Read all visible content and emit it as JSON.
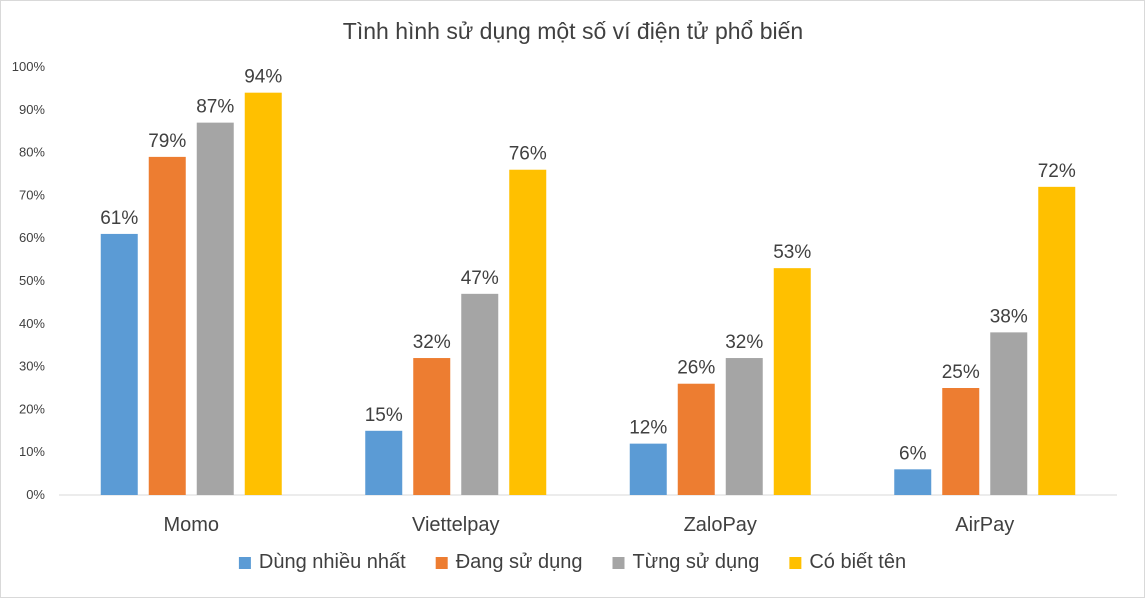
{
  "chart_data": {
    "type": "bar",
    "title": "Tình hình sử dụng một số ví điện tử phổ biến",
    "xlabel": "",
    "ylabel": "",
    "ylim": [
      0,
      100
    ],
    "y_ticks": [
      "0%",
      "10%",
      "20%",
      "30%",
      "40%",
      "50%",
      "60%",
      "70%",
      "80%",
      "90%",
      "100%"
    ],
    "grid": false,
    "legend_position": "bottom",
    "data_label_suffix": "%",
    "categories": [
      "Momo",
      "Viettelpay",
      "ZaloPay",
      "AirPay"
    ],
    "series": [
      {
        "name": "Dùng nhiều nhất",
        "color": "#5b9bd5",
        "values": [
          61,
          15,
          12,
          6
        ]
      },
      {
        "name": "Đang sử dụng",
        "color": "#ed7d31",
        "values": [
          79,
          32,
          26,
          25
        ]
      },
      {
        "name": "Từng sử dụng",
        "color": "#a5a5a5",
        "values": [
          87,
          47,
          32,
          38
        ]
      },
      {
        "name": "Có biết tên",
        "color": "#ffc000",
        "values": [
          94,
          76,
          53,
          72
        ]
      }
    ]
  }
}
